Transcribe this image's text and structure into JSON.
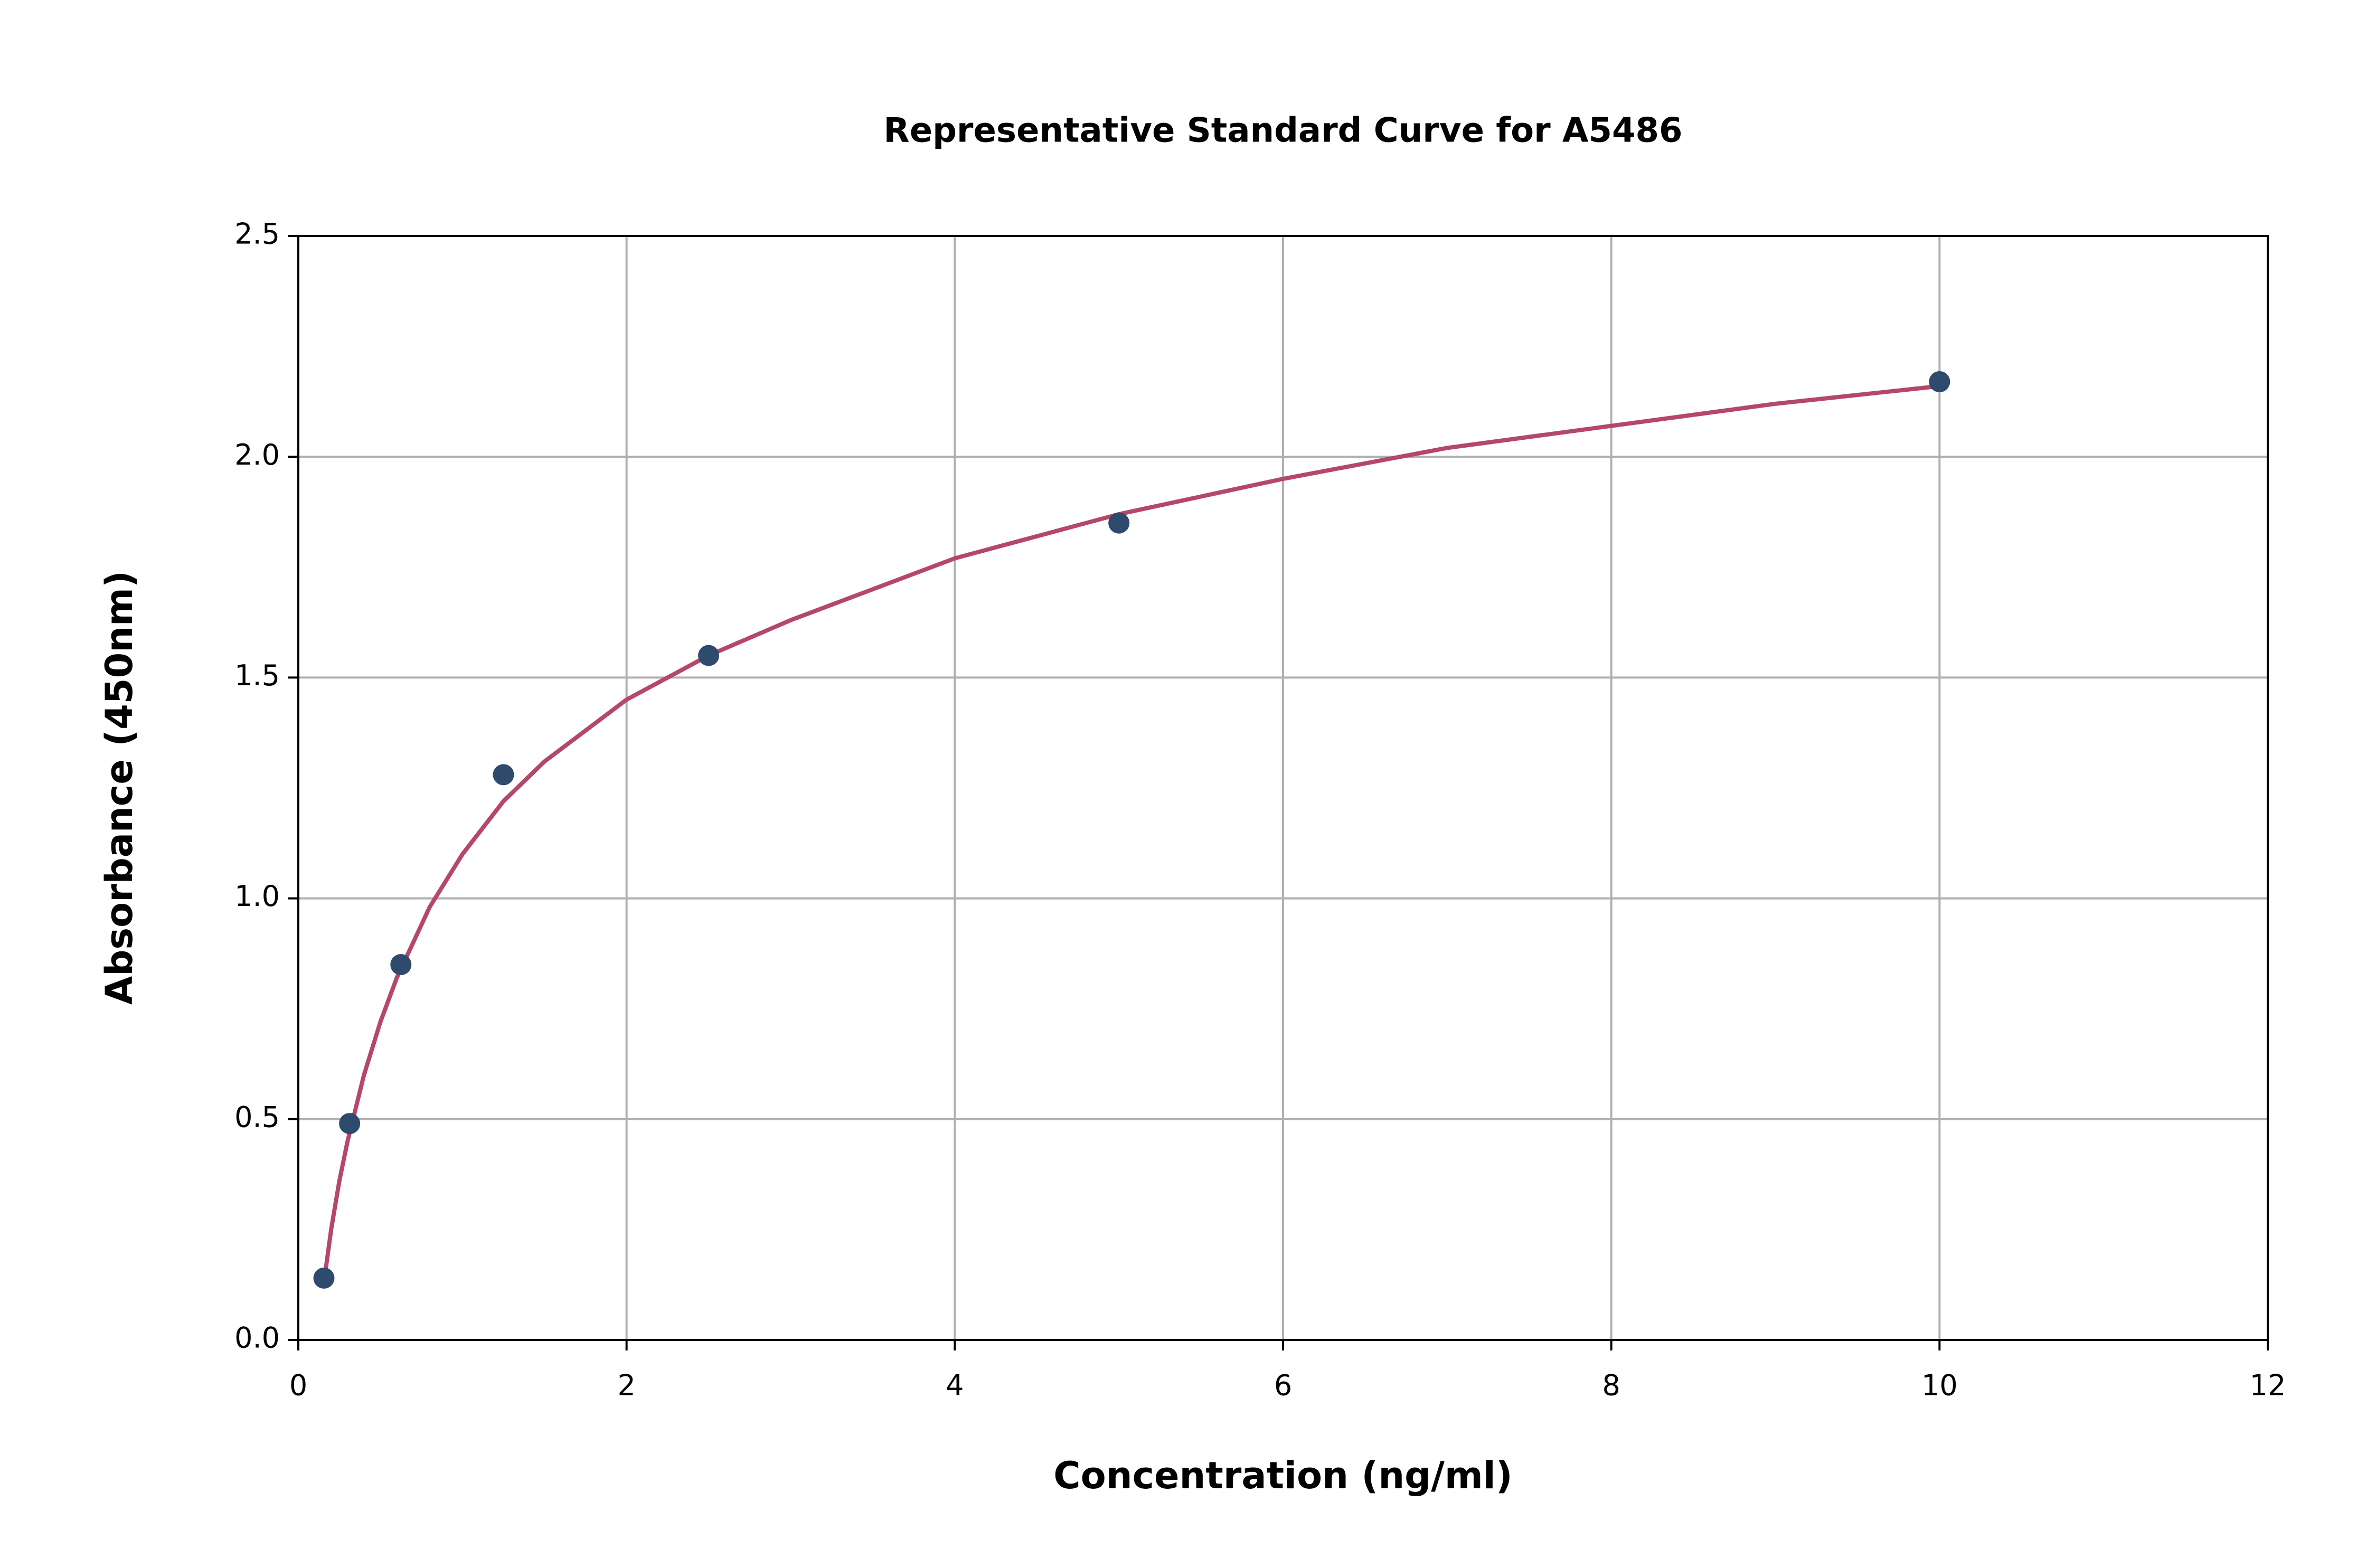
{
  "chart_data": {
    "type": "scatter",
    "title": "Representative Standard Curve for A5486",
    "x_label": "Concentration (ng/ml)",
    "y_label": "Absorbance (450nm)",
    "xlim": [
      0,
      12
    ],
    "xticks": [
      0,
      2,
      4,
      6,
      8,
      10,
      12
    ],
    "ylim": [
      0,
      2.5
    ],
    "yticks": [
      {
        "value": 0,
        "label": "0.0"
      },
      0.5,
      {
        "value": 1,
        "label": "1.0"
      },
      1.5,
      {
        "value": 2,
        "label": "2.0"
      },
      2.5
    ],
    "grid": true,
    "points": {
      "color": "#2e4a6d",
      "x": [
        0.156,
        0.3125,
        0.625,
        1.25,
        2.5,
        5,
        10
      ],
      "y": [
        0.14,
        0.49,
        0.85,
        1.28,
        1.55,
        1.85,
        2.17
      ]
    },
    "curve": {
      "color": "#b5476b",
      "x": [
        0.156,
        0.2,
        0.25,
        0.3,
        0.4,
        0.5,
        0.6,
        0.8,
        1,
        1.25,
        1.5,
        2,
        2.5,
        3,
        4,
        5,
        6,
        7,
        8,
        9,
        10
      ],
      "y": [
        0.13,
        0.25,
        0.36,
        0.45,
        0.6,
        0.72,
        0.82,
        0.98,
        1.1,
        1.22,
        1.31,
        1.45,
        1.55,
        1.63,
        1.77,
        1.87,
        1.95,
        2.02,
        2.07,
        2.12,
        2.16
      ]
    }
  }
}
